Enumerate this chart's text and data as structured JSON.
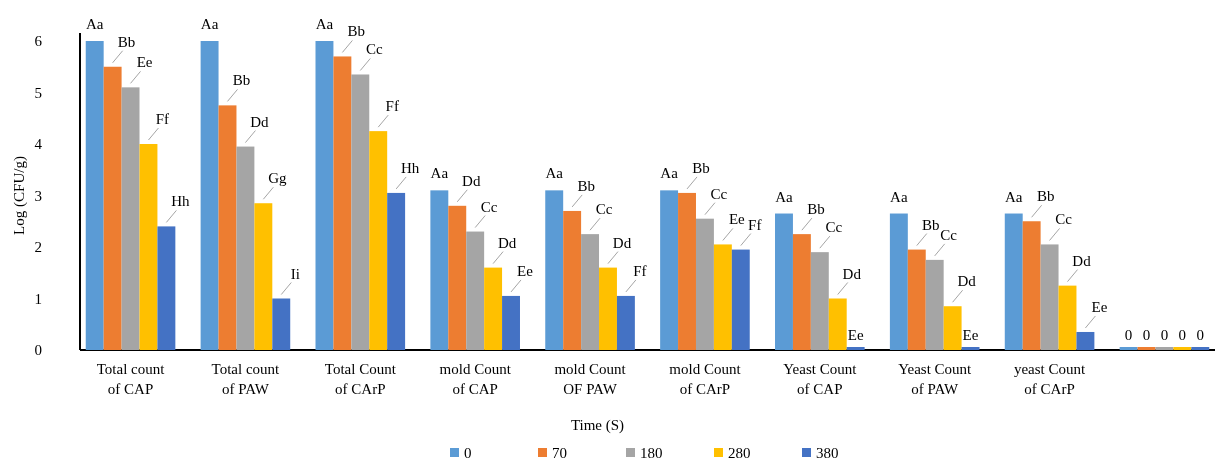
{
  "chart_data": {
    "type": "bar",
    "xlabel": "Time (S)",
    "ylabel": "Log (CFU/g)",
    "categories": [
      "Total count of CAP",
      "Total count of PAW",
      "Total Count of CArP",
      "mold Count of CAP",
      "mold Count OF PAW",
      "mold Count of CArP",
      "Yeast Count of CAP",
      "Yeast Count of PAW",
      "yeast Count of CArP",
      null
    ],
    "ylim": [
      0,
      6
    ],
    "yticks": [
      0,
      1,
      2,
      3,
      4,
      5,
      6
    ],
    "grid": false,
    "legend": "bottom",
    "series": [
      {
        "name": "0",
        "color": "#5b9bd5",
        "values": [
          6,
          6,
          6,
          3.1,
          3.1,
          3.1,
          2.65,
          2.65,
          2.65,
          0
        ],
        "value_labels": [
          "Aa",
          "Aa",
          "Aa",
          "Aa",
          "Aa",
          "Aa",
          "Aa",
          "Aa",
          "Aa",
          "0"
        ]
      },
      {
        "name": "70",
        "color": "#ed7d31",
        "values": [
          5.5,
          4.75,
          5.7,
          2.8,
          2.7,
          3.05,
          2.25,
          1.95,
          2.5,
          0
        ],
        "value_labels": [
          "Bb",
          "Bb",
          "Bb",
          "Dd",
          "Bb",
          "Bb",
          "Bb",
          "Bb",
          "Bb",
          "0"
        ]
      },
      {
        "name": "180",
        "color": "#a5a5a5",
        "values": [
          5.1,
          3.95,
          5.35,
          2.3,
          2.25,
          2.55,
          1.9,
          1.75,
          2.05,
          0
        ],
        "value_labels": [
          "Ee",
          "Dd",
          "Cc",
          "Cc",
          "Cc",
          "Cc",
          "Cc",
          "Cc",
          "Cc",
          "0"
        ]
      },
      {
        "name": "280",
        "color": "#ffc000",
        "values": [
          4,
          2.85,
          4.25,
          1.6,
          1.6,
          2.05,
          1,
          0.85,
          1.25,
          0
        ],
        "value_labels": [
          "Ff",
          "Gg",
          "Ff",
          "Dd",
          "Dd",
          "Ee",
          "Dd",
          "Dd",
          "Dd",
          "0"
        ]
      },
      {
        "name": "380",
        "color": "#4472c4",
        "values": [
          2.4,
          1,
          3.05,
          1.05,
          1.05,
          1.95,
          0,
          0,
          0.35,
          0
        ],
        "value_labels": [
          "Hh",
          "Ii",
          "Hh",
          "Ee",
          "Ff",
          "Ff",
          "Ee",
          "Ee",
          "Ee",
          "0"
        ]
      }
    ]
  }
}
